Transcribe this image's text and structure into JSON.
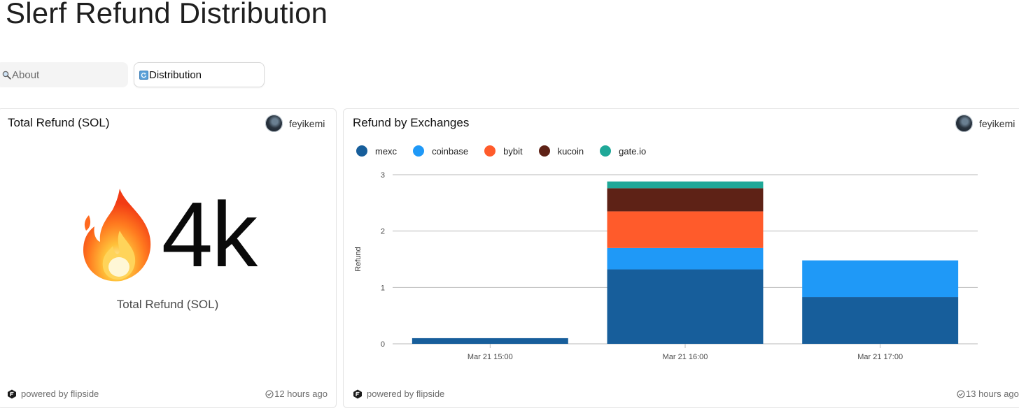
{
  "page": {
    "title": "Slerf Refund Distribution"
  },
  "tabs": [
    {
      "label": "About",
      "icon": "search-icon",
      "active": false
    },
    {
      "label": "Distribution",
      "icon": "refresh-icon",
      "active": true
    }
  ],
  "total_card": {
    "title": "Total Refund (SOL)",
    "author": "feyikemi",
    "big_value": "4k",
    "emoji": "fire-icon",
    "value_label": "Total Refund (SOL)",
    "footer": "powered by flipside",
    "updated": "12 hours ago"
  },
  "exchange_card": {
    "title": "Refund by Exchanges",
    "author": "feyikemi",
    "footer": "powered by flipside",
    "updated": "13 hours ago"
  },
  "colors": {
    "mexc": "#175e9b",
    "coinbase": "#1f99f7",
    "bybit": "#ff5b2b",
    "kucoin": "#5e2216",
    "gate.io": "#1fa898",
    "grid": "#b9b9b9",
    "axis_text": "#4a4a4a"
  },
  "chart_data": {
    "type": "bar",
    "stacked": true,
    "categories": [
      "Mar 21 15:00",
      "Mar 21 16:00",
      "Mar 21 17:00"
    ],
    "series": [
      {
        "name": "mexc",
        "values": [
          0.1,
          1.32,
          0.83
        ]
      },
      {
        "name": "coinbase",
        "values": [
          0,
          0.38,
          0.65
        ]
      },
      {
        "name": "bybit",
        "values": [
          0,
          0.65,
          0
        ]
      },
      {
        "name": "kucoin",
        "values": [
          0,
          0.41,
          0
        ]
      },
      {
        "name": "gate.io",
        "values": [
          0,
          0.12,
          0
        ]
      }
    ],
    "ylabel": "Refund",
    "ylim": [
      0,
      3
    ],
    "yticks": [
      "0",
      "1",
      "2",
      "3"
    ],
    "grid": true,
    "legend_position": "top-left"
  }
}
